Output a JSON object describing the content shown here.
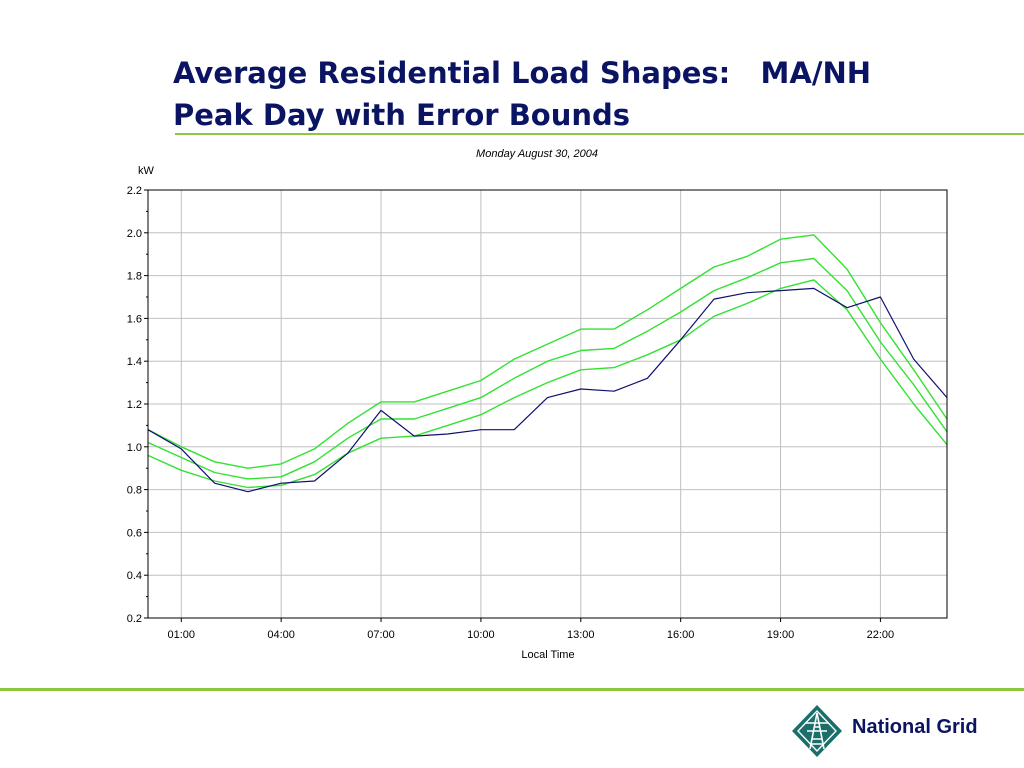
{
  "slide": {
    "title_line1": "Average Residential Load Shapes:   MA/NH",
    "title_line2": "Peak Day with Error Bounds",
    "logo_text": "National Grid",
    "accent_color": "#8dc63f",
    "title_color": "#0b1463"
  },
  "chart_data": {
    "type": "line",
    "title": "Monday August 30, 2004",
    "ylabel": "kW",
    "xlabel": "Local Time",
    "ylim": [
      0.2,
      2.2
    ],
    "yticks": [
      "0.2",
      "0.4",
      "0.6",
      "0.8",
      "1.0",
      "1.2",
      "1.4",
      "1.6",
      "1.8",
      "2.0",
      "2.2"
    ],
    "xlim": [
      0,
      24
    ],
    "xticks": [
      {
        "value": 1,
        "label": "01:00"
      },
      {
        "value": 4,
        "label": "04:00"
      },
      {
        "value": 7,
        "label": "07:00"
      },
      {
        "value": 10,
        "label": "10:00"
      },
      {
        "value": 13,
        "label": "13:00"
      },
      {
        "value": 16,
        "label": "16:00"
      },
      {
        "value": 19,
        "label": "19:00"
      },
      {
        "value": 22,
        "label": "22:00"
      }
    ],
    "grid": true,
    "x": [
      0,
      1,
      2,
      3,
      4,
      5,
      6,
      7,
      8,
      9,
      10,
      11,
      12,
      13,
      14,
      15,
      16,
      17,
      18,
      19,
      20,
      21,
      22,
      23,
      24
    ],
    "series": [
      {
        "role": "upper",
        "color": "#33e233",
        "values": [
          1.08,
          1.0,
          0.93,
          0.9,
          0.92,
          0.99,
          1.11,
          1.21,
          1.21,
          1.26,
          1.31,
          1.41,
          1.48,
          1.55,
          1.55,
          1.64,
          1.74,
          1.84,
          1.89,
          1.97,
          1.99,
          1.83,
          1.58,
          1.36,
          1.13
        ]
      },
      {
        "role": "mean",
        "color": "#33e233",
        "values": [
          1.02,
          0.95,
          0.88,
          0.85,
          0.86,
          0.93,
          1.04,
          1.13,
          1.13,
          1.18,
          1.23,
          1.32,
          1.4,
          1.45,
          1.46,
          1.54,
          1.63,
          1.73,
          1.79,
          1.86,
          1.88,
          1.73,
          1.49,
          1.29,
          1.07
        ]
      },
      {
        "role": "lower",
        "color": "#33e233",
        "values": [
          0.96,
          0.89,
          0.84,
          0.81,
          0.82,
          0.87,
          0.97,
          1.04,
          1.05,
          1.1,
          1.15,
          1.23,
          1.3,
          1.36,
          1.37,
          1.43,
          1.5,
          1.61,
          1.67,
          1.74,
          1.78,
          1.64,
          1.41,
          1.2,
          1.01
        ]
      },
      {
        "role": "actual",
        "color": "#101070",
        "values": [
          1.08,
          0.99,
          0.83,
          0.79,
          0.83,
          0.84,
          0.97,
          1.17,
          1.05,
          1.06,
          1.08,
          1.08,
          1.23,
          1.27,
          1.26,
          1.32,
          1.5,
          1.69,
          1.72,
          1.73,
          1.74,
          1.65,
          1.7,
          1.41,
          1.23
        ]
      }
    ]
  }
}
